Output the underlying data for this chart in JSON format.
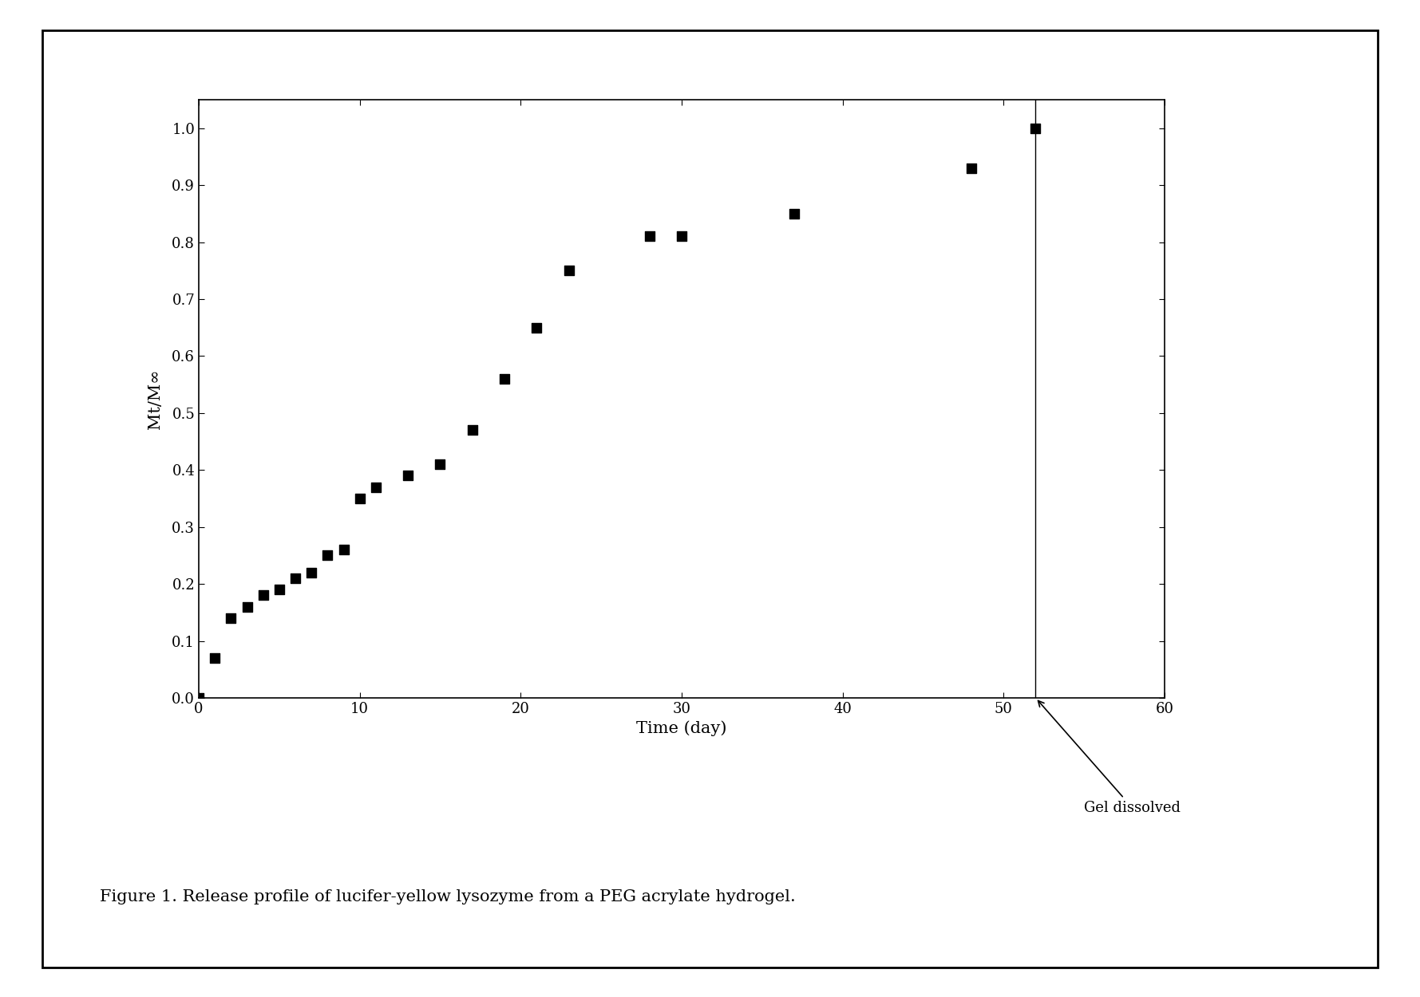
{
  "x": [
    0,
    1,
    2,
    3,
    4,
    5,
    6,
    7,
    8,
    9,
    10,
    11,
    13,
    15,
    17,
    19,
    21,
    23,
    28,
    30,
    37,
    48,
    52
  ],
  "y": [
    0,
    0.07,
    0.14,
    0.16,
    0.18,
    0.19,
    0.21,
    0.22,
    0.25,
    0.26,
    0.35,
    0.37,
    0.39,
    0.41,
    0.47,
    0.56,
    0.65,
    0.75,
    0.81,
    0.81,
    0.85,
    0.93,
    1.0
  ],
  "xlim": [
    0,
    60
  ],
  "ylim": [
    0,
    1.05
  ],
  "xticks": [
    0,
    10,
    20,
    30,
    40,
    50,
    60
  ],
  "yticks": [
    0,
    0.1,
    0.2,
    0.3,
    0.4,
    0.5,
    0.6,
    0.7,
    0.8,
    0.9,
    1
  ],
  "xlabel": "Time (day)",
  "ylabel": "Mt/M∞",
  "vline_x": 52,
  "annotation_text": "Gel dissolved",
  "figure_caption": "Figure 1. Release profile of lucifer-yellow lysozyme from a PEG acrylate hydrogel.",
  "marker_color": "#000000",
  "background_color": "#ffffff",
  "tick_fontsize": 13,
  "label_fontsize": 15,
  "caption_fontsize": 15
}
